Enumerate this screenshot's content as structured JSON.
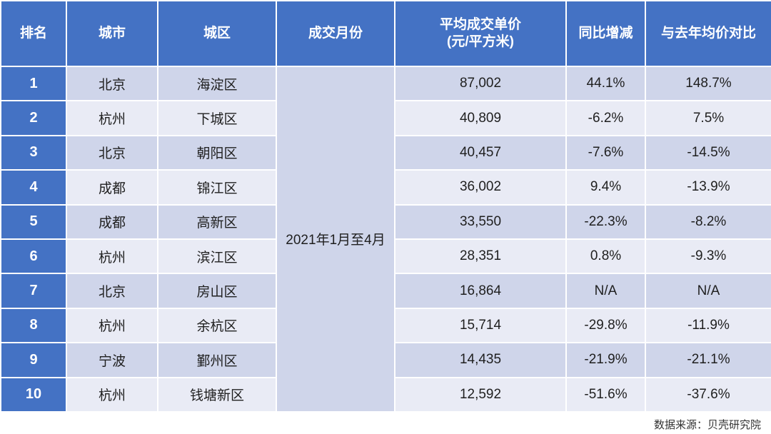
{
  "table": {
    "headers": {
      "rank": "排名",
      "city": "城市",
      "district": "城区",
      "period": "成交月份",
      "price_line1": "平均成交单价",
      "price_line2": "(元/平方米)",
      "yoy": "同比增减",
      "vs_last_year": "与去年均价对比"
    },
    "period": "2021年1月至4月",
    "rows": [
      {
        "rank": "1",
        "city": "北京",
        "district": "海淀区",
        "price": "87,002",
        "yoy": "44.1%",
        "vs": "148.7%"
      },
      {
        "rank": "2",
        "city": "杭州",
        "district": "下城区",
        "price": "40,809",
        "yoy": "-6.2%",
        "vs": "7.5%"
      },
      {
        "rank": "3",
        "city": "北京",
        "district": "朝阳区",
        "price": "40,457",
        "yoy": "-7.6%",
        "vs": "-14.5%"
      },
      {
        "rank": "4",
        "city": "成都",
        "district": "锦江区",
        "price": "36,002",
        "yoy": "9.4%",
        "vs": "-13.9%"
      },
      {
        "rank": "5",
        "city": "成都",
        "district": "高新区",
        "price": "33,550",
        "yoy": "-22.3%",
        "vs": "-8.2%"
      },
      {
        "rank": "6",
        "city": "杭州",
        "district": "滨江区",
        "price": "28,351",
        "yoy": "0.8%",
        "vs": "-9.3%"
      },
      {
        "rank": "7",
        "city": "北京",
        "district": "房山区",
        "price": "16,864",
        "yoy": "N/A",
        "vs": "N/A"
      },
      {
        "rank": "8",
        "city": "杭州",
        "district": "余杭区",
        "price": "15,714",
        "yoy": "-29.8%",
        "vs": "-11.9%"
      },
      {
        "rank": "9",
        "city": "宁波",
        "district": "鄞州区",
        "price": "14,435",
        "yoy": "-21.9%",
        "vs": "-21.1%"
      },
      {
        "rank": "10",
        "city": "杭州",
        "district": "钱塘新区",
        "price": "12,592",
        "yoy": "-51.6%",
        "vs": "-37.6%"
      }
    ]
  },
  "footer": {
    "source": "数据来源：贝壳研究院"
  },
  "colors": {
    "header_bg": "#4472c4",
    "row_dark": "#cfd5ea",
    "row_light": "#e9ebf5"
  }
}
